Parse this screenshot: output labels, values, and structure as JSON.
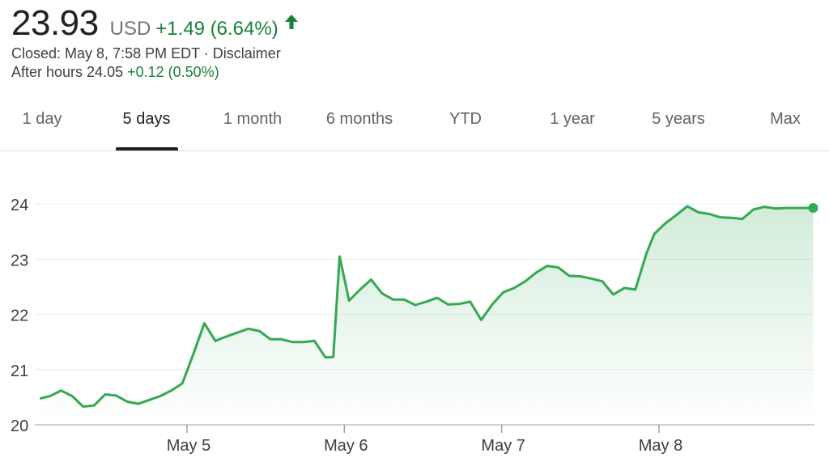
{
  "quote": {
    "price": "23.93",
    "currency": "USD",
    "change": "+1.49 (6.64%)",
    "direction_icon": "arrow-up-icon",
    "closed_text": "Closed: May 8, 7:58 PM EDT · Disclaimer",
    "after_hours_label": "After hours 24.05",
    "after_hours_change": "+0.12 (0.50%)"
  },
  "tabs": [
    {
      "label": "1 day",
      "active": false
    },
    {
      "label": "5 days",
      "active": true
    },
    {
      "label": "1 month",
      "active": false
    },
    {
      "label": "6 months",
      "active": false
    },
    {
      "label": "YTD",
      "active": false
    },
    {
      "label": "1 year",
      "active": false
    },
    {
      "label": "5 years",
      "active": false
    },
    {
      "label": "Max",
      "active": false
    }
  ],
  "colors": {
    "line": "#34a853",
    "positive_text": "#188038",
    "grid": "#ebebeb",
    "axis_text": "#3c4043"
  },
  "chart_data": {
    "type": "area",
    "x_tick_labels": [
      "May 5",
      "May 6",
      "May 7",
      "May 8"
    ],
    "x_tick_positions": [
      1,
      2,
      3,
      4
    ],
    "x_range": [
      0.07,
      4.98
    ],
    "y_ticks": [
      20,
      21,
      22,
      23,
      24
    ],
    "ylim": [
      20,
      24.3
    ],
    "grid": true,
    "series": [
      {
        "x": [
          0.07,
          0.13,
          0.2,
          0.27,
          0.34,
          0.41,
          0.48,
          0.55,
          0.62,
          0.69,
          0.76,
          0.83,
          0.9,
          0.97,
          1.04,
          1.11,
          1.18,
          1.25,
          1.32,
          1.39,
          1.46,
          1.53,
          1.6,
          1.67,
          1.74,
          1.81,
          1.88,
          1.93,
          1.97,
          2.03,
          2.1,
          2.17,
          2.24,
          2.31,
          2.38,
          2.45,
          2.52,
          2.59,
          2.66,
          2.73,
          2.8,
          2.87,
          2.94,
          3.01,
          3.08,
          3.15,
          3.22,
          3.29,
          3.36,
          3.43,
          3.5,
          3.57,
          3.64,
          3.71,
          3.78,
          3.85,
          3.92,
          3.97,
          4.04,
          4.11,
          4.18,
          4.25,
          4.32,
          4.39,
          4.46,
          4.53,
          4.6,
          4.67,
          4.74,
          4.81,
          4.88,
          4.98
        ],
        "y": [
          20.48,
          20.52,
          20.62,
          20.52,
          20.33,
          20.35,
          20.55,
          20.53,
          20.42,
          20.38,
          20.45,
          20.52,
          20.62,
          20.75,
          21.28,
          21.84,
          21.52,
          21.6,
          21.67,
          21.74,
          21.7,
          21.55,
          21.55,
          21.5,
          21.5,
          21.52,
          21.22,
          21.23,
          23.05,
          22.25,
          22.45,
          22.63,
          22.38,
          22.27,
          22.27,
          22.17,
          22.23,
          22.3,
          22.18,
          22.19,
          22.23,
          21.9,
          22.18,
          22.4,
          22.48,
          22.6,
          22.76,
          22.88,
          22.85,
          22.7,
          22.69,
          22.65,
          22.6,
          22.36,
          22.48,
          22.45,
          23.1,
          23.46,
          23.65,
          23.8,
          23.96,
          23.85,
          23.82,
          23.76,
          23.75,
          23.73,
          23.9,
          23.95,
          23.92,
          23.93,
          23.93,
          23.93
        ]
      }
    ],
    "last_point_marker": true
  }
}
